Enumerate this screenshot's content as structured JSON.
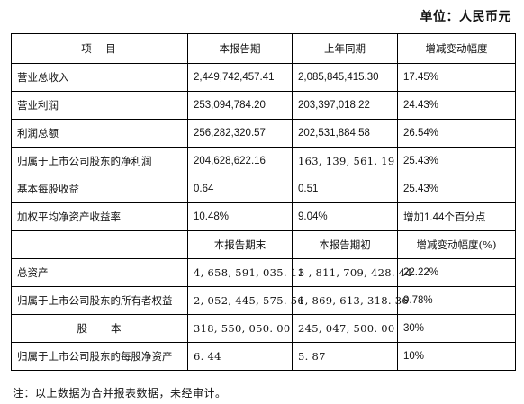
{
  "unit_label": "单位：人民币元",
  "header1": {
    "item": "项　目",
    "current": "本报告期",
    "prior": "上年同期",
    "change": "增减变动幅度"
  },
  "rows1": [
    {
      "item": "营业总收入",
      "current": "2,449,742,457.41",
      "prior": "2,085,845,415.30",
      "change": "17.45%"
    },
    {
      "item": "营业利润",
      "current": "253,094,784.20",
      "prior": "203,397,018.22",
      "change": "24.43%"
    },
    {
      "item": "利润总额",
      "current": "256,282,320.57",
      "prior": "202,531,884.58",
      "change": "26.54%"
    },
    {
      "item": "归属于上市公司股东的净利润",
      "current": "204,628,622.16",
      "prior": "163, 139, 561. 19",
      "change": "25.43%"
    },
    {
      "item": "基本每股收益",
      "current": "0.64",
      "prior": "0.51",
      "change": "25.43%"
    },
    {
      "item": "加权平均净资产收益率",
      "current": "10.48%",
      "prior": "9.04%",
      "change": "增加1.44个百分点"
    }
  ],
  "header2": {
    "item": "",
    "current": "本报告期末",
    "prior": "本报告期初",
    "change": "增减变动幅度(%)"
  },
  "rows2": [
    {
      "item": "总资产",
      "current": "4, 658, 591, 035. 11",
      "prior": "3 , 811, 709, 428. 44",
      "change": "22.22%"
    },
    {
      "item": "归属于上市公司股东的所有者权益",
      "current": "2, 052, 445, 575. 56",
      "prior": "1, 869, 613, 318. 36",
      "change": "9.78%"
    },
    {
      "item": "股　　本",
      "current": "318, 550, 050. 00",
      "prior": "245, 047, 500. 00",
      "change": "30%"
    },
    {
      "item": "归属于上市公司股东的每股净资产",
      "current": "6. 44",
      "prior": "5. 87",
      "change": "10%"
    }
  ],
  "note": "注：以上数据为合并报表数据，未经审计。"
}
